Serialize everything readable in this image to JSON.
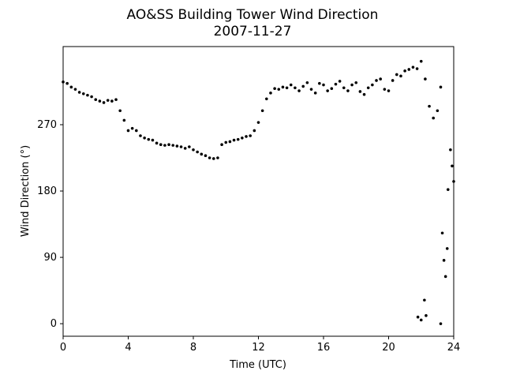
{
  "chart_data": {
    "type": "scatter",
    "title": "AO&SS Building Tower Wind Direction",
    "subtitle": "2007-11-27",
    "x_label": "Time (UTC)",
    "y_label": "Wind Direction (°)",
    "color": "#000000",
    "xlim": [
      0,
      24
    ],
    "xticks": [
      0,
      4,
      8,
      12,
      16,
      20,
      24
    ],
    "ylim": [
      -17,
      376
    ],
    "yticks": [
      0,
      90,
      180,
      270
    ],
    "x": [
      0,
      0.25,
      0.5,
      0.75,
      1,
      1.25,
      1.5,
      1.75,
      2,
      2.25,
      2.5,
      2.75,
      3,
      3.25,
      3.5,
      3.75,
      4,
      4.25,
      4.5,
      4.75,
      5,
      5.25,
      5.5,
      5.75,
      6,
      6.25,
      6.5,
      6.75,
      7,
      7.25,
      7.5,
      7.75,
      8,
      8.25,
      8.5,
      8.75,
      9,
      9.25,
      9.5,
      9.75,
      10,
      10.25,
      10.5,
      10.75,
      11,
      11.25,
      11.5,
      11.75,
      12,
      12.25,
      12.5,
      12.75,
      13,
      13.25,
      13.5,
      13.75,
      14,
      14.25,
      14.5,
      14.75,
      15,
      15.25,
      15.5,
      15.75,
      16,
      16.25,
      16.5,
      16.75,
      17,
      17.25,
      17.5,
      17.75,
      18,
      18.25,
      18.5,
      18.75,
      19,
      19.25,
      19.5,
      19.75,
      20,
      20.25,
      20.5,
      20.75,
      21,
      21.25,
      21.5,
      21.75,
      21.8,
      22,
      22,
      22.2,
      22.25,
      22.3,
      22.5,
      22.75,
      23,
      23.2,
      23.2,
      23.3,
      23.4,
      23.5,
      23.6,
      23.65,
      23.8,
      23.9,
      24
    ],
    "values": [
      328,
      326,
      321,
      318,
      314,
      312,
      310,
      308,
      304,
      302,
      300,
      303,
      302,
      304,
      289,
      276,
      262,
      265,
      262,
      255,
      252,
      250,
      249,
      245,
      243,
      242,
      243,
      242,
      241,
      240,
      238,
      240,
      236,
      233,
      230,
      228,
      225,
      224,
      225,
      243,
      246,
      247,
      249,
      250,
      252,
      254,
      255,
      262,
      273,
      289,
      305,
      313,
      319,
      318,
      321,
      320,
      324,
      320,
      316,
      322,
      327,
      318,
      313,
      326,
      324,
      316,
      319,
      325,
      329,
      320,
      316,
      324,
      327,
      315,
      311,
      320,
      324,
      330,
      332,
      318,
      316,
      330,
      338,
      336,
      343,
      345,
      348,
      346,
      9,
      356,
      5,
      32,
      332,
      11,
      295,
      279,
      289,
      0,
      321,
      123,
      86,
      64,
      102,
      182,
      236,
      214,
      193
    ]
  }
}
